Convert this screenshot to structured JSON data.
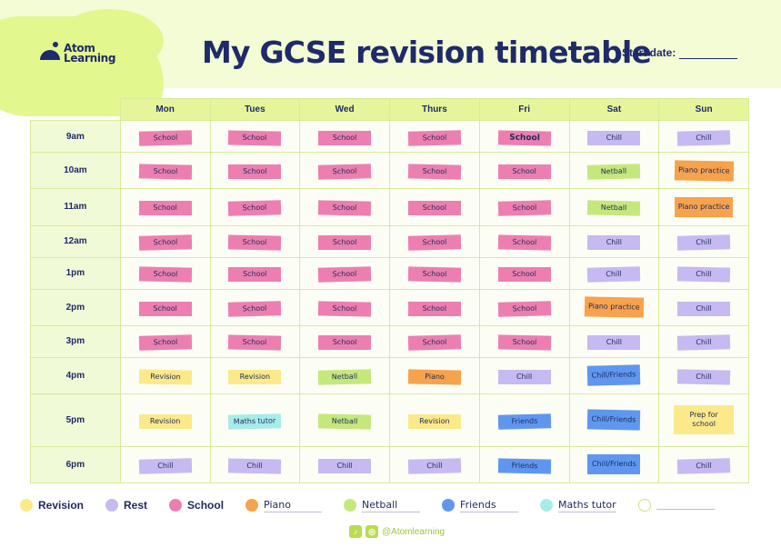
{
  "brand": {
    "logo_line1": "Atom",
    "logo_line2": "Learning"
  },
  "title": "My GCSE revision timetable",
  "start_date_label": "Start date:",
  "days": [
    "Mon",
    "Tues",
    "Wed",
    "Thurs",
    "Fri",
    "Sat",
    "Sun"
  ],
  "rows": [
    {
      "time": "9am",
      "cells": [
        "School",
        "School",
        "School",
        "School",
        "School",
        "Chill",
        "Chill"
      ]
    },
    {
      "time": "10am",
      "cells": [
        "School",
        "School",
        "School",
        "School",
        "School",
        "Netball",
        "Piano practice"
      ]
    },
    {
      "time": "11am",
      "cells": [
        "School",
        "School",
        "School",
        "School",
        "School",
        "Netball",
        "Piano practice"
      ]
    },
    {
      "time": "12am",
      "cells": [
        "School",
        "School",
        "School",
        "School",
        "School",
        "Chill",
        "Chill"
      ]
    },
    {
      "time": "1pm",
      "cells": [
        "School",
        "School",
        "School",
        "School",
        "School",
        "Chill",
        "Chill"
      ]
    },
    {
      "time": "2pm",
      "cells": [
        "School",
        "School",
        "School",
        "School",
        "School",
        "Piano practice",
        "Chill"
      ]
    },
    {
      "time": "3pm",
      "cells": [
        "School",
        "School",
        "School",
        "School",
        "School",
        "Chill",
        "Chill"
      ]
    },
    {
      "time": "4pm",
      "cells": [
        "Revision",
        "Revision",
        "Netball",
        "Piano",
        "Chill",
        "Chill/Friends",
        "Chill"
      ]
    },
    {
      "time": "5pm",
      "cells": [
        "Revision",
        "Maths tutor",
        "Netball",
        "Revision",
        "Friends",
        "Chill/Friends",
        "Prep for school"
      ]
    },
    {
      "time": "6pm",
      "cells": [
        "Chill",
        "Chill",
        "Chill",
        "Chill",
        "Friends",
        "Chill/Friends",
        "Chill"
      ]
    }
  ],
  "legend": [
    {
      "label": "Revision",
      "color": "#fbe98a",
      "style": "print"
    },
    {
      "label": "Rest",
      "color": "#c7b9f2",
      "style": "print"
    },
    {
      "label": "School",
      "color": "#ec7fb0",
      "style": "print"
    },
    {
      "label": "Piano",
      "color": "#f7a24d",
      "style": "hand"
    },
    {
      "label": "Netball",
      "color": "#c5e87c",
      "style": "hand"
    },
    {
      "label": "Friends",
      "color": "#5f97f0",
      "style": "hand"
    },
    {
      "label": "Maths tutor",
      "color": "#a6ecea",
      "style": "hand"
    },
    {
      "label": "",
      "color": "#ffffff",
      "style": "blank"
    }
  ],
  "footer": {
    "handle": "@Atomlearning",
    "icons": [
      "tiktok-icon",
      "instagram-icon"
    ]
  }
}
